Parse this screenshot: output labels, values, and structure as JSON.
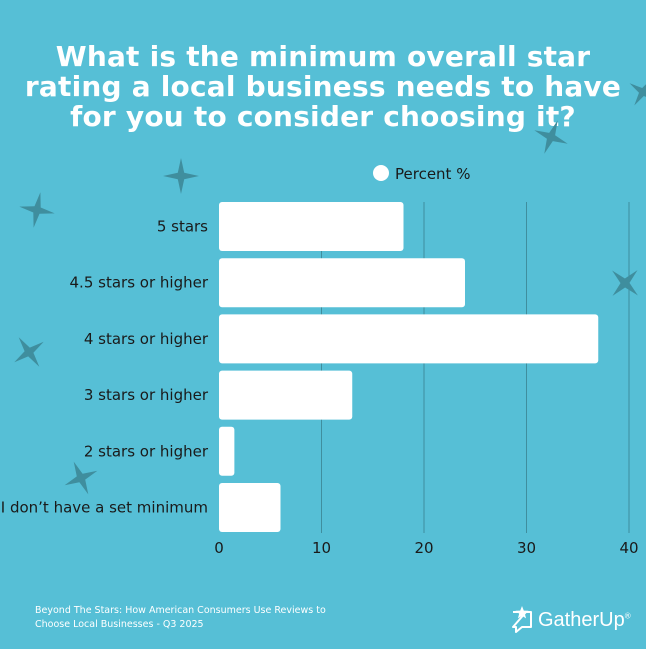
{
  "title": "What is the minimum overall star rating a local business needs to have for you to consider choosing it?",
  "source": "Beyond The Stars: How American Consumers Use Reviews to Choose Local Businesses - Q3 2025",
  "brand": {
    "name": "GatherUp",
    "mark": "®"
  },
  "colors": {
    "background": "#56bfd6",
    "bar": "#ffffff",
    "star": "#3f8e9e",
    "grid": "#3f8e9e",
    "text": "#1a1a1a"
  },
  "chart_data": {
    "type": "bar",
    "orientation": "horizontal",
    "categories": [
      "5 stars",
      "4.5 stars or higher",
      "4 stars or higher",
      "3 stars or higher",
      "2 stars or higher",
      "I don’t have a set minimum"
    ],
    "series": [
      {
        "name": "Percent %",
        "values": [
          18,
          24,
          37,
          13,
          1.5,
          6
        ]
      }
    ],
    "xlim": [
      0,
      40
    ],
    "xticks": [
      0,
      10,
      20,
      30,
      40
    ],
    "grid": "vertical",
    "legend": "top-center"
  }
}
